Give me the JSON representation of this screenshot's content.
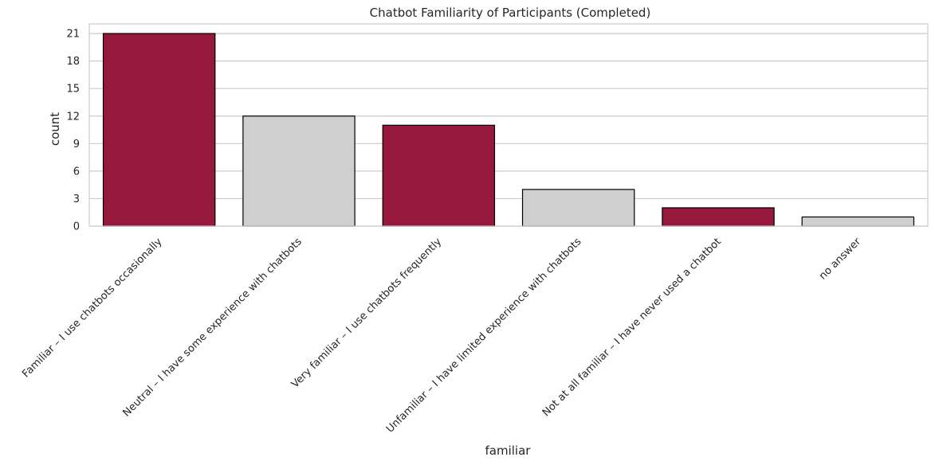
{
  "chart_data": {
    "type": "bar",
    "title": "Chatbot Familiarity of Participants (Completed)",
    "xlabel": "familiar",
    "ylabel": "count",
    "categories": [
      "Familiar – I use chatbots occasionally",
      "Neutral – I have some experience with chatbots",
      "Very familiar – I use chatbots frequently",
      "Unfamiliar – I have limited experience with chatbots",
      "Not at all familiar – I have never used a chatbot",
      "no answer"
    ],
    "values": [
      21,
      12,
      11,
      4,
      2,
      1
    ],
    "ylim": [
      0,
      22.05
    ],
    "yticks": [
      0,
      3,
      6,
      9,
      12,
      15,
      18,
      21
    ],
    "grid": true,
    "bar_colors": [
      "#96193d",
      "#cfcfcf",
      "#96193d",
      "#cfcfcf",
      "#96193d",
      "#cfcfcf"
    ],
    "bar_edge_color": "#000000",
    "grid_color": "#cccccc",
    "spine_color": "#cccccc"
  }
}
